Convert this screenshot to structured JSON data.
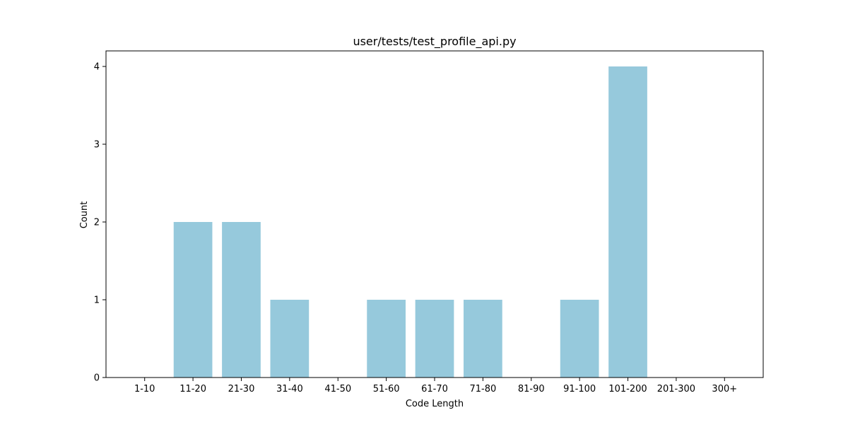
{
  "chart_data": {
    "type": "bar",
    "title": "user/tests/test_profile_api.py",
    "xlabel": "Code Length",
    "ylabel": "Count",
    "categories": [
      "1-10",
      "11-20",
      "21-30",
      "31-40",
      "41-50",
      "51-60",
      "61-70",
      "71-80",
      "81-90",
      "91-100",
      "101-200",
      "201-300",
      "300+"
    ],
    "values": [
      0,
      2,
      2,
      1,
      0,
      1,
      1,
      1,
      0,
      1,
      4,
      0,
      0
    ],
    "ylim": [
      0,
      4.2
    ],
    "yticks": [
      0,
      1,
      2,
      3,
      4
    ],
    "bar_color": "#96c9dc",
    "grid": false,
    "legend": "none"
  }
}
